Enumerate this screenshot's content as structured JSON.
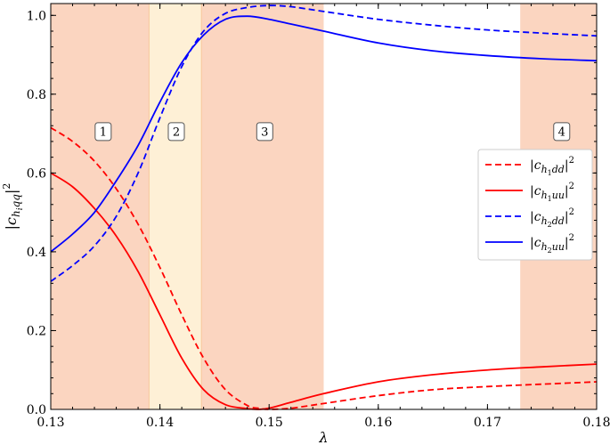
{
  "chart_data": {
    "type": "line",
    "xlabel": "λ",
    "ylabel": "|c_{h_i qq}|²",
    "xlim": [
      0.13,
      0.18
    ],
    "ylim": [
      0.0,
      1.03
    ],
    "x_ticks": [
      "0.13",
      "0.14",
      "0.15",
      "0.16",
      "0.17",
      "0.18"
    ],
    "y_ticks": [
      "0.0",
      "0.2",
      "0.4",
      "0.6",
      "0.8",
      "1.0"
    ],
    "grid": false,
    "legend_position": "right",
    "regions": [
      {
        "label": "1",
        "x_start": 0.13,
        "x_end": 0.139,
        "color": "#fbd5c0"
      },
      {
        "label": "2",
        "x_start": 0.139,
        "x_end": 0.1438,
        "color": "#fef0d6"
      },
      {
        "label": "3",
        "x_start": 0.1438,
        "x_end": 0.155,
        "color": "#fbd5c0"
      },
      {
        "label": "4",
        "x_start": 0.173,
        "x_end": 0.18,
        "color": "#fbd5c0"
      }
    ],
    "region_label_y": 0.705,
    "region_label_x": [
      0.1348,
      0.1415,
      0.1496,
      0.1768
    ],
    "series": [
      {
        "name": "|c_{h1dd}|²",
        "legend_main": "|c",
        "legend_sub": "h",
        "legend_subsub": "1",
        "legend_tail": "dd",
        "legend_end": "|",
        "legend_sup": "2",
        "color": "#ff0000",
        "dash": "dashed",
        "x": [
          0.13,
          0.132,
          0.134,
          0.136,
          0.138,
          0.14,
          0.142,
          0.144,
          0.146,
          0.148,
          0.149,
          0.15,
          0.152,
          0.155,
          0.16,
          0.165,
          0.17,
          0.175,
          0.18
        ],
        "y": [
          0.715,
          0.68,
          0.63,
          0.56,
          0.47,
          0.36,
          0.24,
          0.13,
          0.05,
          0.01,
          0.003,
          0.0,
          0.003,
          0.015,
          0.035,
          0.05,
          0.058,
          0.064,
          0.07
        ]
      },
      {
        "name": "|c_{h1uu}|²",
        "legend_main": "|c",
        "legend_sub": "h",
        "legend_subsub": "1",
        "legend_tail": "uu",
        "legend_end": "|",
        "legend_sup": "2",
        "color": "#ff0000",
        "dash": "solid",
        "x": [
          0.13,
          0.132,
          0.134,
          0.136,
          0.138,
          0.14,
          0.142,
          0.144,
          0.146,
          0.148,
          0.149,
          0.15,
          0.152,
          0.155,
          0.16,
          0.165,
          0.17,
          0.175,
          0.18
        ],
        "y": [
          0.6,
          0.565,
          0.51,
          0.44,
          0.35,
          0.24,
          0.13,
          0.05,
          0.012,
          0.002,
          0.0,
          0.003,
          0.018,
          0.04,
          0.07,
          0.088,
          0.1,
          0.108,
          0.115
        ]
      },
      {
        "name": "|c_{h2dd}|²",
        "legend_main": "|c",
        "legend_sub": "h",
        "legend_subsub": "2",
        "legend_tail": "dd",
        "legend_end": "|",
        "legend_sup": "2",
        "color": "#0000ff",
        "dash": "dashed",
        "x": [
          0.13,
          0.132,
          0.134,
          0.136,
          0.138,
          0.14,
          0.142,
          0.144,
          0.146,
          0.148,
          0.15,
          0.152,
          0.155,
          0.16,
          0.165,
          0.17,
          0.175,
          0.18
        ],
        "y": [
          0.325,
          0.365,
          0.415,
          0.49,
          0.6,
          0.74,
          0.87,
          0.96,
          1.005,
          1.02,
          1.025,
          1.022,
          1.01,
          0.99,
          0.975,
          0.963,
          0.955,
          0.948
        ]
      },
      {
        "name": "|c_{h2uu}|²",
        "legend_main": "|c",
        "legend_sub": "h",
        "legend_subsub": "2",
        "legend_tail": "uu",
        "legend_end": "|",
        "legend_sup": "2",
        "color": "#0000ff",
        "dash": "solid",
        "x": [
          0.13,
          0.132,
          0.134,
          0.136,
          0.138,
          0.14,
          0.142,
          0.144,
          0.146,
          0.148,
          0.15,
          0.152,
          0.155,
          0.16,
          0.165,
          0.17,
          0.175,
          0.18
        ],
        "y": [
          0.4,
          0.445,
          0.5,
          0.58,
          0.67,
          0.78,
          0.88,
          0.95,
          0.99,
          0.998,
          0.99,
          0.978,
          0.96,
          0.93,
          0.91,
          0.898,
          0.89,
          0.885
        ]
      }
    ]
  }
}
